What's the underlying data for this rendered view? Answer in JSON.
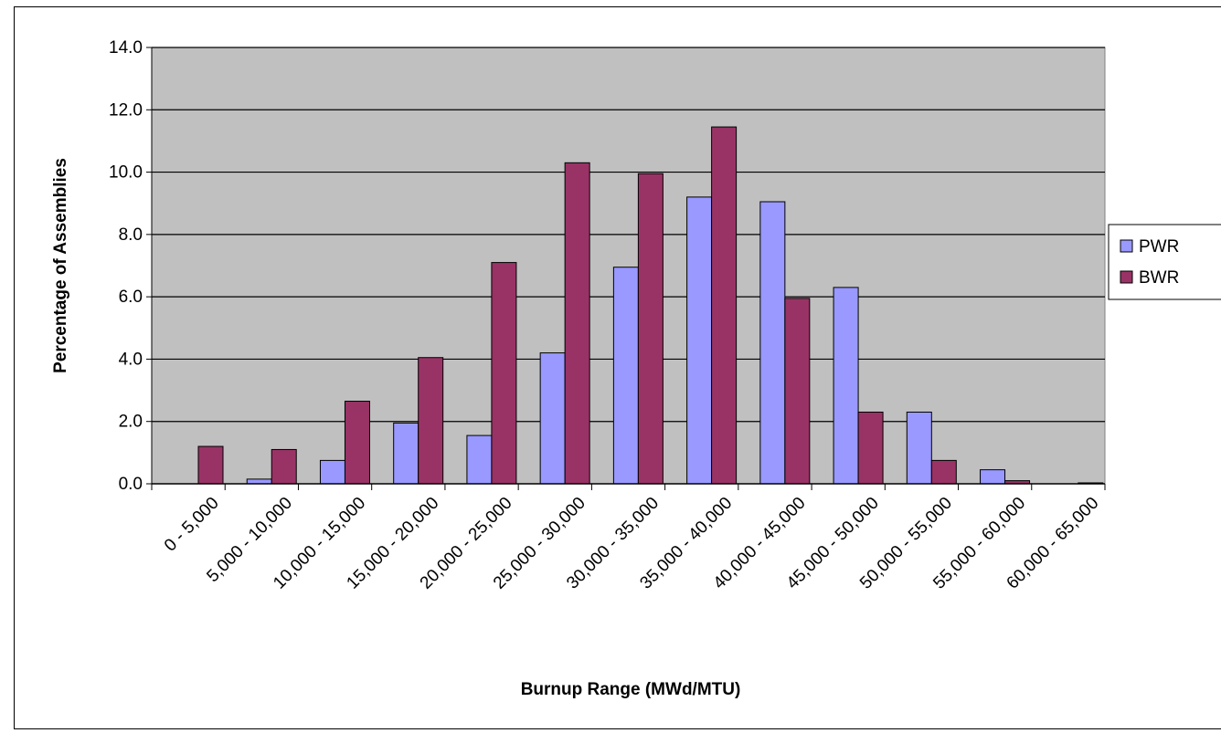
{
  "chart_data": {
    "type": "bar",
    "title": "",
    "xlabel": "Burnup Range (MWd/MTU)",
    "ylabel": "Percentage of Assemblies",
    "ylim": [
      0,
      14
    ],
    "yticks": [
      "0.0",
      "2.0",
      "4.0",
      "6.0",
      "8.0",
      "10.0",
      "12.0",
      "14.0"
    ],
    "grid": true,
    "legend_position": "right",
    "categories": [
      "0 - 5,000",
      "5,000 - 10,000",
      "10,000 - 15,000",
      "15,000 - 20,000",
      "20,000 - 25,000",
      "25,000 - 30,000",
      "30,000 - 35,000",
      "35,000 - 40,000",
      "40,000 - 45,000",
      "45,000 - 50,000",
      "50,000 - 55,000",
      "55,000 - 60,000",
      "60,000 - 65,000"
    ],
    "series": [
      {
        "name": "PWR",
        "color": "#9999ff",
        "values": [
          0.0,
          0.15,
          0.75,
          1.95,
          1.55,
          4.2,
          6.95,
          9.2,
          9.05,
          6.3,
          2.3,
          0.45,
          0.0
        ]
      },
      {
        "name": "BWR",
        "color": "#993366",
        "values": [
          1.2,
          1.1,
          2.65,
          4.05,
          7.1,
          10.3,
          9.95,
          11.45,
          5.95,
          2.3,
          0.75,
          0.1,
          0.03
        ]
      }
    ],
    "plot_background": "#c0c0c0"
  }
}
